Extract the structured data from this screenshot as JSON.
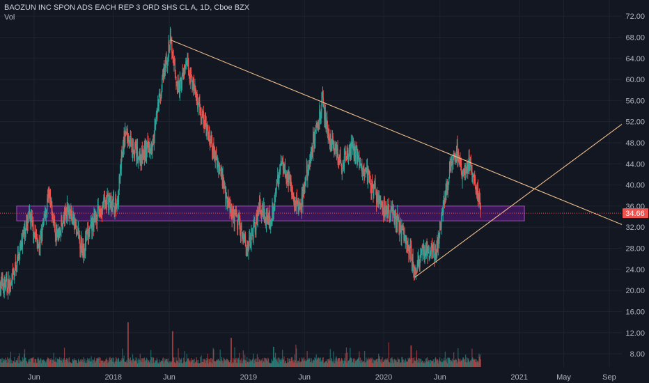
{
  "header": {
    "symbol_line": "BAOZUN INC SPON ADS EACH REP 3 ORD SHS CL A, 1D, Cboe BZX",
    "volume_label": "Vol"
  },
  "colors": {
    "background": "#131722",
    "grid": "#1f2330",
    "up": "#26a69a",
    "down": "#ef5350",
    "trendline": "#f0c08a",
    "zone_fill": "#6a1b9a",
    "zone_border": "#ab47bc",
    "price_label_bg": "#ef5350",
    "axis_text": "#b2b5be"
  },
  "chart_data": {
    "type": "candlestick",
    "title": "BAOZUN INC SPON ADS EACH REP 3 ORD SHS CL A, 1D, Cboe BZX",
    "price_axis": {
      "ticks": [
        "72.00",
        "68.00",
        "64.00",
        "60.00",
        "56.00",
        "52.00",
        "48.00",
        "44.00",
        "40.00",
        "36.00",
        "32.00",
        "28.00",
        "24.00",
        "20.00",
        "16.00",
        "12.00",
        "8.00"
      ],
      "range": [
        5.5,
        74
      ]
    },
    "time_axis": {
      "ticks": [
        "Jun",
        "2018",
        "Jun",
        "2019",
        "Jun",
        "2020",
        "Jun",
        "2021",
        "May",
        "Sep"
      ],
      "tick_dates": [
        "2017-06-01",
        "2018-01-01",
        "2018-06-01",
        "2019-01-01",
        "2019-06-01",
        "2020-01-01",
        "2020-06-01",
        "2021-01-01",
        "2021-05-01",
        "2021-09-01"
      ],
      "range": [
        "2017-03-01",
        "2021-10-05"
      ]
    },
    "last_price": "34.66",
    "price_path": [
      [
        "2017-03-01",
        21
      ],
      [
        "2017-04-01",
        21
      ],
      [
        "2017-05-01",
        30
      ],
      [
        "2017-05-20",
        34
      ],
      [
        "2017-06-15",
        28
      ],
      [
        "2017-07-10",
        38
      ],
      [
        "2017-08-01",
        30
      ],
      [
        "2017-09-01",
        36
      ],
      [
        "2017-10-10",
        28
      ],
      [
        "2017-11-15",
        34
      ],
      [
        "2017-12-15",
        37
      ],
      [
        "2018-01-10",
        36
      ],
      [
        "2018-02-01",
        50
      ],
      [
        "2018-03-15",
        45
      ],
      [
        "2018-04-15",
        48
      ],
      [
        "2018-05-15",
        60
      ],
      [
        "2018-06-04",
        67.5
      ],
      [
        "2018-06-25",
        58
      ],
      [
        "2018-07-20",
        63
      ],
      [
        "2018-08-20",
        55
      ],
      [
        "2018-09-20",
        48
      ],
      [
        "2018-10-20",
        42
      ],
      [
        "2018-11-10",
        36
      ],
      [
        "2018-12-10",
        32
      ],
      [
        "2019-01-01",
        28
      ],
      [
        "2019-02-01",
        36
      ],
      [
        "2019-03-01",
        33
      ],
      [
        "2019-04-01",
        45
      ],
      [
        "2019-05-01",
        38
      ],
      [
        "2019-05-20",
        35
      ],
      [
        "2019-06-20",
        47
      ],
      [
        "2019-07-20",
        55.5
      ],
      [
        "2019-08-10",
        48
      ],
      [
        "2019-09-10",
        44
      ],
      [
        "2019-10-10",
        47
      ],
      [
        "2019-11-10",
        43
      ],
      [
        "2019-12-10",
        38
      ],
      [
        "2020-01-10",
        35
      ],
      [
        "2020-02-10",
        33
      ],
      [
        "2020-03-10",
        28
      ],
      [
        "2020-03-25",
        23.5
      ],
      [
        "2020-04-20",
        28
      ],
      [
        "2020-05-20",
        27
      ],
      [
        "2020-06-10",
        36
      ],
      [
        "2020-07-01",
        44
      ],
      [
        "2020-07-15",
        46.5
      ],
      [
        "2020-08-01",
        41
      ],
      [
        "2020-08-20",
        44.5
      ],
      [
        "2020-09-10",
        38
      ],
      [
        "2020-09-20",
        34.66
      ]
    ],
    "volume": {
      "range": [
        0,
        210
      ],
      "spikes": [
        [
          "2018-02-10",
          100
        ],
        [
          "2018-06-10",
          80
        ],
        [
          "2018-11-15",
          65
        ],
        [
          "2019-03-10",
          45
        ],
        [
          "2019-05-10",
          50
        ],
        [
          "2019-08-10",
          40
        ],
        [
          "2020-01-15",
          55
        ],
        [
          "2020-03-15",
          48
        ],
        [
          "2020-07-20",
          42
        ],
        [
          "2020-09-15",
          30
        ]
      ]
    },
    "drawings": {
      "trendlines": [
        {
          "from": [
            "2018-06-04",
            67.5
          ],
          "to": [
            "2021-10-05",
            32.5
          ]
        },
        {
          "from": [
            "2020-03-25",
            22.5
          ],
          "to": [
            "2021-10-05",
            51.5
          ]
        }
      ],
      "zone": {
        "from_date": "2017-04-15",
        "to_date": "2021-01-15",
        "top": 36.0,
        "bottom": 33.2
      },
      "last_price_line": 34.66
    }
  }
}
